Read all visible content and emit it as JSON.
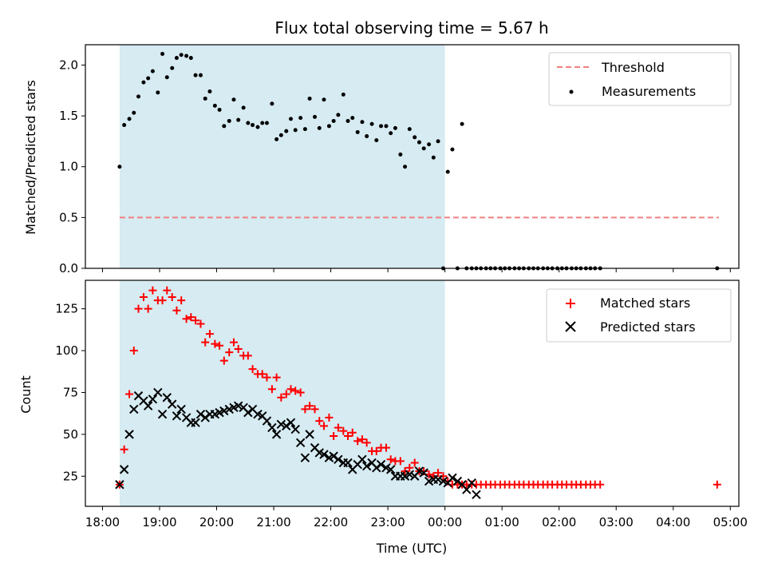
{
  "chart_data": [
    {
      "type": "scatter",
      "title": "Flux total observing time = 5.67 h",
      "xlabel": "",
      "ylabel": "Matched/Predicted stars",
      "ylim": [
        0,
        2.2
      ],
      "xlim_hours": [
        17.7,
        29.15
      ],
      "yticks": [
        "0.0",
        "0.5",
        "1.0",
        "1.5",
        "2.0"
      ],
      "shaded_span_hours": [
        18.3,
        24.0
      ],
      "shaded_color": "#add8e6",
      "legend_position": "top-right",
      "legend": [
        "Threshold",
        "Measurements"
      ],
      "threshold": {
        "name": "Threshold",
        "y": 0.5,
        "x_range_hours": [
          18.3,
          28.8
        ],
        "color": "#f08080"
      },
      "measurements": {
        "name": "Measurements",
        "color": "#000000",
        "x_hours": [
          18.3,
          18.38,
          18.47,
          18.55,
          18.63,
          18.72,
          18.8,
          18.88,
          18.97,
          19.05,
          19.13,
          19.22,
          19.3,
          19.38,
          19.47,
          19.55,
          19.63,
          19.72,
          19.8,
          19.88,
          19.97,
          20.05,
          20.13,
          20.22,
          20.3,
          20.38,
          20.47,
          20.55,
          20.63,
          20.72,
          20.8,
          20.88,
          20.97,
          21.05,
          21.13,
          21.22,
          21.3,
          21.38,
          21.47,
          21.55,
          21.63,
          21.72,
          21.8,
          21.88,
          21.97,
          22.05,
          22.13,
          22.22,
          22.3,
          22.38,
          22.47,
          22.55,
          22.63,
          22.72,
          22.8,
          22.88,
          22.97,
          23.05,
          23.13,
          23.22,
          23.3,
          23.38,
          23.47,
          23.55,
          23.63,
          23.72,
          23.8,
          23.88,
          23.97,
          24.05,
          24.13,
          24.22,
          24.3,
          24.38,
          24.47,
          24.55,
          24.63,
          24.72,
          24.8,
          24.88,
          24.97,
          25.05,
          25.13,
          25.22,
          25.3,
          25.38,
          25.47,
          25.55,
          25.63,
          25.72,
          25.8,
          25.88,
          25.97,
          26.05,
          26.13,
          26.22,
          26.3,
          26.38,
          26.47,
          26.55,
          26.63,
          26.72,
          28.77
        ],
        "y": [
          1.0,
          1.41,
          1.47,
          1.53,
          1.69,
          1.83,
          1.87,
          1.94,
          1.73,
          2.11,
          1.88,
          1.97,
          2.07,
          2.1,
          2.09,
          2.07,
          1.9,
          1.9,
          1.67,
          1.74,
          1.6,
          1.56,
          1.4,
          1.45,
          1.66,
          1.46,
          1.58,
          1.43,
          1.41,
          1.39,
          1.43,
          1.43,
          1.62,
          1.27,
          1.31,
          1.35,
          1.47,
          1.36,
          1.48,
          1.37,
          1.67,
          1.49,
          1.38,
          1.66,
          1.4,
          1.45,
          1.51,
          1.71,
          1.45,
          1.48,
          1.34,
          1.44,
          1.3,
          1.42,
          1.26,
          1.4,
          1.4,
          1.33,
          1.38,
          1.12,
          1.0,
          1.37,
          1.29,
          1.24,
          1.18,
          1.22,
          1.09,
          1.25,
          0.0,
          0.95,
          1.17,
          0.0,
          1.42,
          0.0,
          0.0,
          0.0,
          0.0,
          0.0,
          0.0,
          0.0,
          0.0,
          0.0,
          0.0,
          0.0,
          0.0,
          0.0,
          0.0,
          0.0,
          0.0,
          0.0,
          0.0,
          0.0,
          0.0,
          0.0,
          0.0,
          0.0,
          0.0,
          0.0,
          0.0,
          0.0,
          0.0,
          0.0,
          0.0
        ]
      }
    },
    {
      "type": "scatter",
      "xlabel": "Time (UTC)",
      "ylabel": "Count",
      "ylim": [
        7,
        142
      ],
      "xlim_hours": [
        17.7,
        29.15
      ],
      "yticks": [
        "25",
        "50",
        "75",
        "100",
        "125"
      ],
      "xticks": [
        "18:00",
        "19:00",
        "20:00",
        "21:00",
        "22:00",
        "23:00",
        "00:00",
        "01:00",
        "02:00",
        "03:00",
        "04:00",
        "05:00"
      ],
      "shaded_span_hours": [
        18.3,
        24.0
      ],
      "shaded_color": "#add8e6",
      "legend_position": "top-right",
      "legend": [
        "Matched stars",
        "Predicted stars"
      ],
      "series": [
        {
          "name": "Matched stars",
          "marker": "+",
          "color": "#ff0000",
          "x_hours": [
            18.3,
            18.38,
            18.47,
            18.55,
            18.63,
            18.72,
            18.8,
            18.88,
            18.97,
            19.05,
            19.13,
            19.22,
            19.3,
            19.38,
            19.47,
            19.55,
            19.63,
            19.72,
            19.8,
            19.88,
            19.97,
            20.05,
            20.13,
            20.22,
            20.3,
            20.38,
            20.47,
            20.55,
            20.63,
            20.72,
            20.8,
            20.88,
            20.97,
            21.05,
            21.13,
            21.22,
            21.3,
            21.38,
            21.47,
            21.55,
            21.63,
            21.72,
            21.8,
            21.88,
            21.97,
            22.05,
            22.13,
            22.22,
            22.3,
            22.38,
            22.47,
            22.55,
            22.63,
            22.72,
            22.8,
            22.88,
            22.97,
            23.05,
            23.13,
            23.22,
            23.3,
            23.38,
            23.47,
            23.55,
            23.63,
            23.72,
            23.8,
            23.88,
            23.97,
            24.05,
            24.13,
            24.22,
            24.3,
            24.38,
            24.47,
            24.55,
            24.63,
            24.72,
            24.8,
            24.88,
            24.97,
            25.05,
            25.13,
            25.22,
            25.3,
            25.38,
            25.47,
            25.55,
            25.63,
            25.72,
            25.8,
            25.88,
            25.97,
            26.05,
            26.13,
            26.22,
            26.3,
            26.38,
            26.47,
            26.55,
            26.63,
            26.72,
            28.77
          ],
          "y": [
            20,
            41,
            74,
            100,
            125,
            132,
            125,
            136,
            130,
            130,
            136,
            132,
            124,
            130,
            119,
            120,
            118,
            116,
            105,
            110,
            104,
            103,
            94,
            99,
            105,
            101,
            97,
            97,
            89,
            86,
            86,
            84,
            77,
            84,
            72,
            74,
            77,
            76,
            75,
            65,
            67,
            65,
            58,
            55,
            60,
            49,
            54,
            52,
            49,
            51,
            46,
            47,
            45,
            40,
            40,
            42,
            42,
            35,
            34,
            34,
            28,
            30,
            33,
            28,
            28,
            26,
            25,
            27,
            25,
            22,
            20,
            20,
            20,
            20,
            20,
            20,
            20,
            20,
            20,
            20,
            20,
            20,
            20,
            20,
            20,
            20,
            20,
            20,
            20,
            20,
            20,
            20,
            20,
            20,
            20,
            20,
            20,
            20,
            20,
            20,
            20,
            20,
            20
          ]
        },
        {
          "name": "Predicted stars",
          "marker": "x",
          "color": "#000000",
          "x_hours": [
            18.3,
            18.38,
            18.47,
            18.55,
            18.63,
            18.72,
            18.8,
            18.88,
            18.97,
            19.05,
            19.13,
            19.22,
            19.3,
            19.38,
            19.47,
            19.55,
            19.63,
            19.72,
            19.8,
            19.88,
            19.97,
            20.05,
            20.13,
            20.22,
            20.3,
            20.38,
            20.47,
            20.55,
            20.63,
            20.72,
            20.8,
            20.88,
            20.97,
            21.05,
            21.13,
            21.22,
            21.3,
            21.38,
            21.47,
            21.55,
            21.63,
            21.72,
            21.8,
            21.88,
            21.97,
            22.05,
            22.13,
            22.22,
            22.3,
            22.38,
            22.47,
            22.55,
            22.63,
            22.72,
            22.8,
            22.88,
            22.97,
            23.05,
            23.13,
            23.22,
            23.3,
            23.38,
            23.47,
            23.55,
            23.63,
            23.72,
            23.8,
            23.88,
            23.97,
            24.05,
            24.13,
            24.22,
            24.3,
            24.38,
            24.47,
            24.55
          ],
          "y": [
            20,
            29,
            50,
            65,
            73,
            70,
            67,
            71,
            75,
            62,
            72,
            68,
            61,
            65,
            60,
            57,
            57,
            62,
            60,
            62,
            62,
            63,
            64,
            65,
            66,
            67,
            66,
            63,
            65,
            62,
            61,
            58,
            54,
            50,
            56,
            55,
            57,
            53,
            45,
            36,
            50,
            42,
            39,
            38,
            36,
            37,
            35,
            33,
            33,
            29,
            32,
            35,
            31,
            33,
            30,
            32,
            30,
            29,
            25,
            25,
            25,
            26,
            25,
            28,
            27,
            22,
            23,
            23,
            22,
            21,
            24,
            22,
            20,
            17,
            21,
            14
          ]
        }
      ]
    }
  ]
}
